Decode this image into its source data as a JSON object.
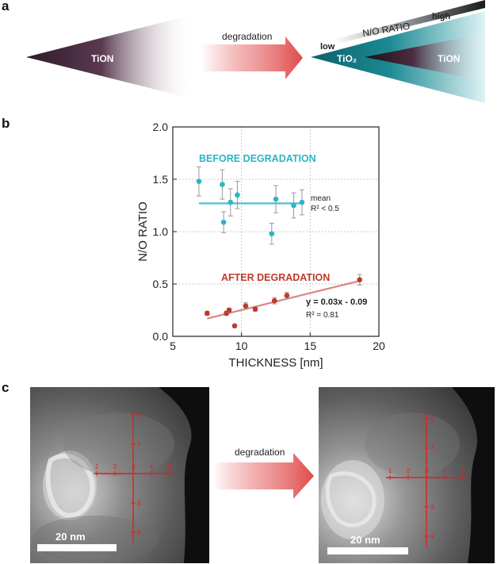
{
  "panel_a": {
    "label": "a",
    "left_material": "TiON",
    "arrow_label": "degradation",
    "right_core": "TiON",
    "right_shell": "TiO₂",
    "low_label": "low",
    "high_label": "high",
    "ratio_label": "N/O RATIO"
  },
  "panel_b": {
    "label": "b",
    "annotations": {
      "before_label": "BEFORE DEGRADATION",
      "after_label": "AFTER DEGRADATION",
      "mean_label": "mean",
      "mean_r2": "R² < 0.5",
      "fit_eq": "y = 0.03x - 0.09",
      "fit_r2": "R² = 0.81"
    }
  },
  "chart_data": {
    "type": "scatter",
    "xlabel": "THICKNESS [nm]",
    "ylabel": "N/O RATIO",
    "xlim": [
      5,
      20
    ],
    "ylim": [
      0,
      2
    ],
    "xticks": [
      "5",
      "10",
      "15",
      "20"
    ],
    "yticks": [
      "0.0",
      "0.5",
      "1.0",
      "1.5",
      "2.0"
    ],
    "grid": "dotted",
    "series": [
      {
        "name": "BEFORE DEGRADATION",
        "color": "#2ab5c7",
        "points": [
          {
            "x": 6.9,
            "y": 1.48,
            "err": 0.14
          },
          {
            "x": 8.6,
            "y": 1.45,
            "err": 0.14
          },
          {
            "x": 8.7,
            "y": 1.09,
            "err": 0.1
          },
          {
            "x": 9.2,
            "y": 1.28,
            "err": 0.13
          },
          {
            "x": 9.7,
            "y": 1.35,
            "err": 0.13
          },
          {
            "x": 12.2,
            "y": 0.98,
            "err": 0.1
          },
          {
            "x": 12.5,
            "y": 1.31,
            "err": 0.13
          },
          {
            "x": 13.8,
            "y": 1.25,
            "err": 0.12
          },
          {
            "x": 14.4,
            "y": 1.28,
            "err": 0.12
          }
        ],
        "fit": {
          "x": [
            6.9,
            14.4
          ],
          "y": [
            1.27,
            1.27
          ]
        }
      },
      {
        "name": "AFTER DEGRADATION",
        "color": "#c0392b",
        "points": [
          {
            "x": 7.5,
            "y": 0.22,
            "err": 0.02
          },
          {
            "x": 8.9,
            "y": 0.22,
            "err": 0.02
          },
          {
            "x": 9.1,
            "y": 0.25,
            "err": 0.02
          },
          {
            "x": 9.5,
            "y": 0.1,
            "err": 0.01
          },
          {
            "x": 10.3,
            "y": 0.29,
            "err": 0.03
          },
          {
            "x": 11.0,
            "y": 0.26,
            "err": 0.02
          },
          {
            "x": 12.4,
            "y": 0.34,
            "err": 0.03
          },
          {
            "x": 13.3,
            "y": 0.39,
            "err": 0.03
          },
          {
            "x": 18.6,
            "y": 0.54,
            "err": 0.05
          }
        ],
        "fit": {
          "x": [
            7.5,
            18.6
          ],
          "y": [
            0.17,
            0.53
          ]
        }
      }
    ]
  },
  "panel_c": {
    "label": "c",
    "arrow_label": "degradation",
    "scale_bar": "20 nm",
    "ruler_numbers": [
      "1",
      "2",
      "3",
      "4",
      "5",
      "6",
      "7",
      "8",
      "9"
    ]
  },
  "colors": {
    "tion_dark": "#3b2333",
    "teal": "#147d86",
    "arrow_red": "#e45a5a",
    "ruler_red": "#e02020"
  }
}
